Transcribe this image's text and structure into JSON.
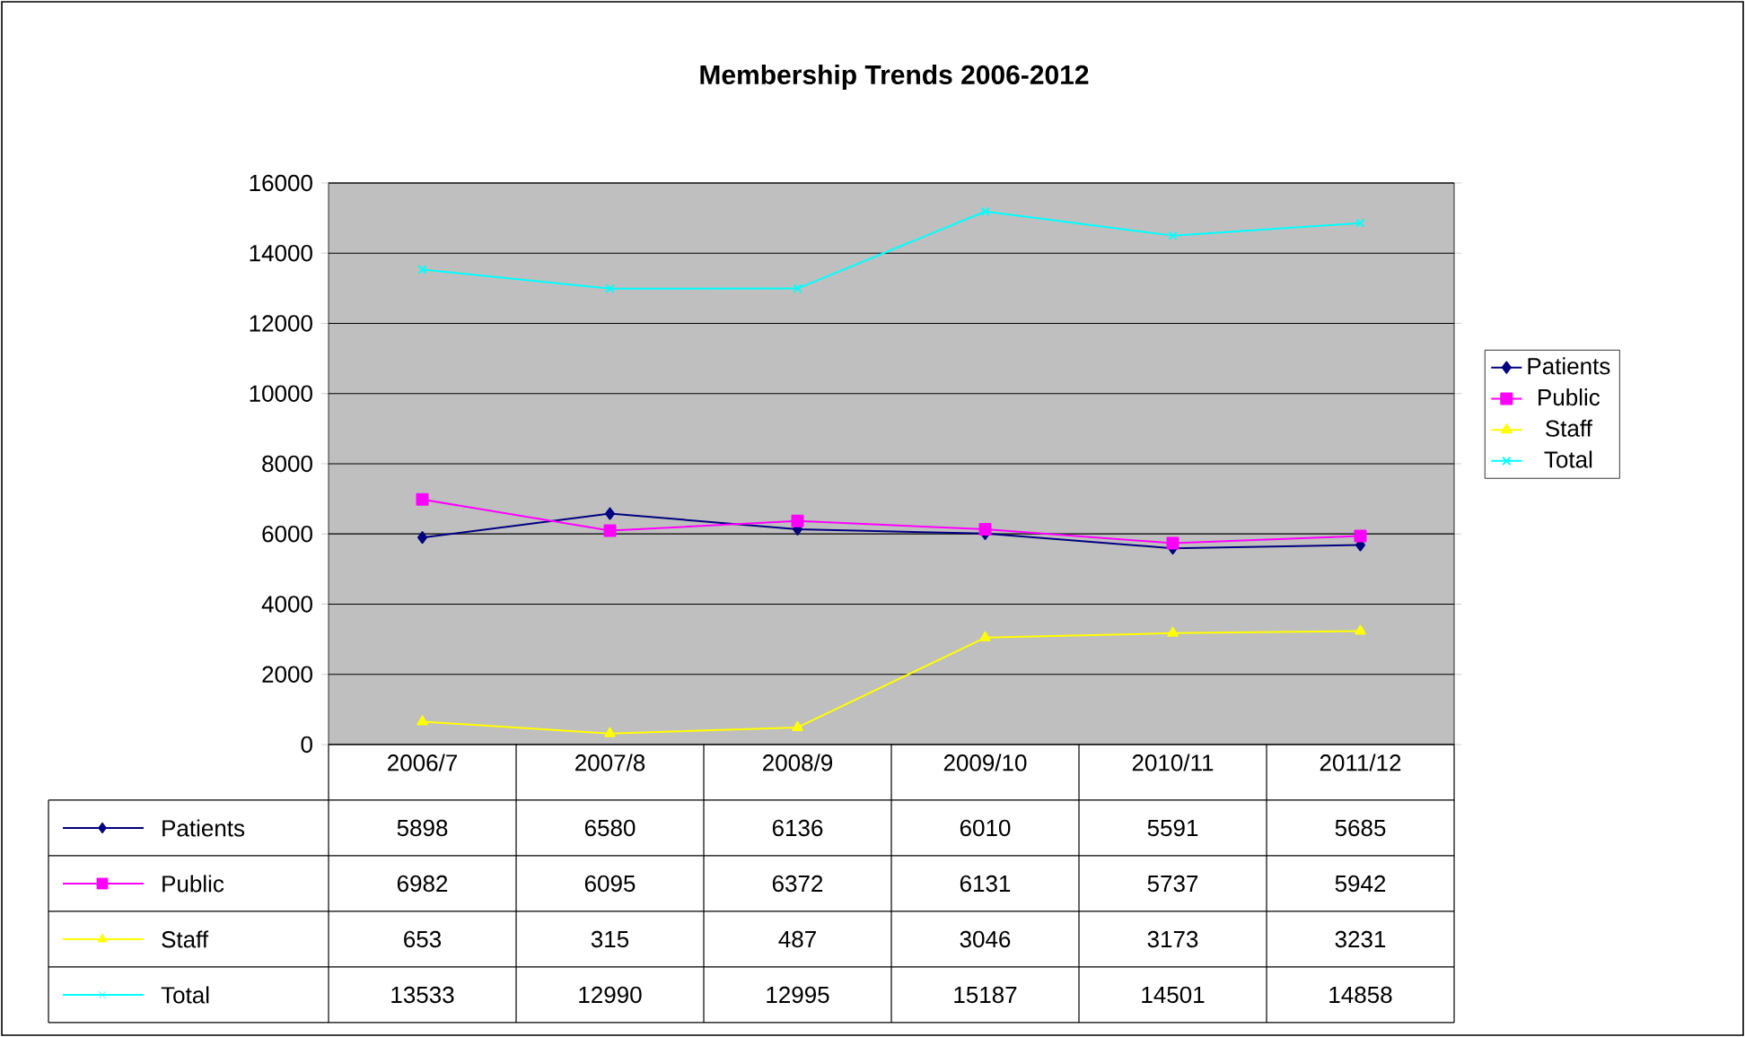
{
  "chart_data": {
    "type": "line",
    "title": "Membership Trends 2006-2012",
    "categories": [
      "2006/7",
      "2007/8",
      "2008/9",
      "2009/10",
      "2010/11",
      "2011/12"
    ],
    "series": [
      {
        "name": "Patients",
        "color": "#000080",
        "marker": "diamond",
        "values": [
          5898,
          6580,
          6136,
          6010,
          5591,
          5685
        ]
      },
      {
        "name": "Public",
        "color": "#ff00ff",
        "marker": "square",
        "values": [
          6982,
          6095,
          6372,
          6131,
          5737,
          5942
        ]
      },
      {
        "name": "Staff",
        "color": "#ffff00",
        "marker": "triangle",
        "values": [
          653,
          315,
          487,
          3046,
          3173,
          3231
        ]
      },
      {
        "name": "Total",
        "color": "#00ffff",
        "marker": "cross",
        "values": [
          13533,
          12990,
          12995,
          15187,
          14501,
          14858
        ]
      }
    ],
    "ylim": [
      0,
      16000
    ],
    "yticks": [
      0,
      2000,
      4000,
      6000,
      8000,
      10000,
      12000,
      14000,
      16000
    ],
    "grid": "y",
    "legend": "right",
    "data_labels": true
  }
}
